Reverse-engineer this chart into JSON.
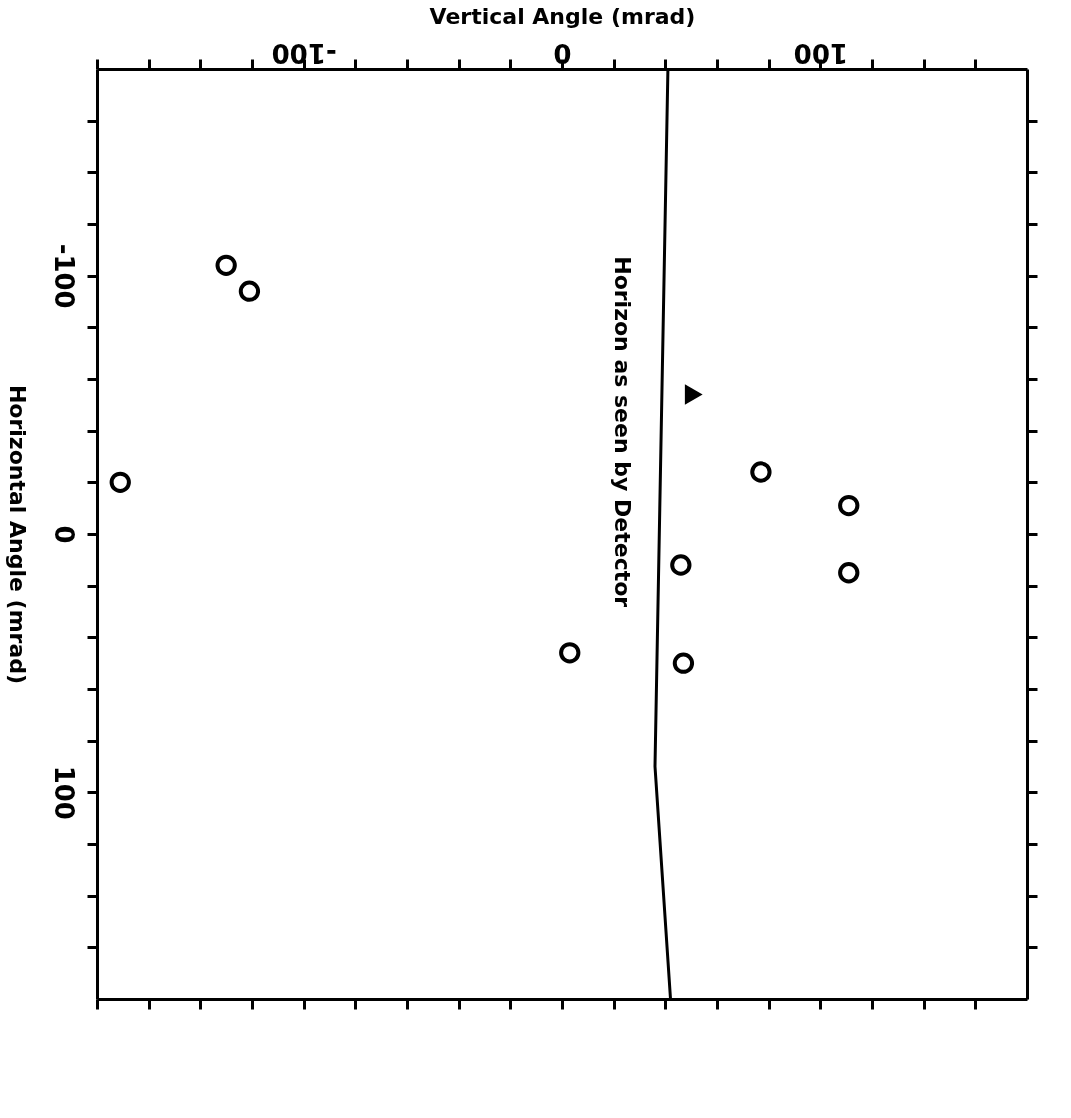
{
  "chart_data": {
    "type": "scatter",
    "xlabel": "Vertical Angle (mrad)",
    "ylabel": "Horizontal Angle (mrad)",
    "xlim": [
      -180,
      180
    ],
    "ylim": [
      180,
      -180
    ],
    "xticks": [
      {
        "value": -180,
        "label": null
      },
      {
        "value": -160,
        "label": null
      },
      {
        "value": -140,
        "label": null
      },
      {
        "value": -120,
        "label": null
      },
      -100,
      {
        "value": -80,
        "label": null
      },
      {
        "value": -60,
        "label": null
      },
      {
        "value": -40,
        "label": null
      },
      {
        "value": -20,
        "label": null
      },
      0,
      {
        "value": 20,
        "label": null
      },
      {
        "value": 40,
        "label": null
      },
      {
        "value": 60,
        "label": null
      },
      {
        "value": 80,
        "label": null
      },
      100,
      {
        "value": 120,
        "label": null
      },
      {
        "value": 140,
        "label": null
      },
      {
        "value": 160,
        "label": null
      }
    ],
    "yticks": [
      {
        "value": -160,
        "label": null
      },
      {
        "value": -140,
        "label": null
      },
      {
        "value": -120,
        "label": null
      },
      -100,
      {
        "value": -80,
        "label": null
      },
      {
        "value": -60,
        "label": null
      },
      {
        "value": -40,
        "label": null
      },
      {
        "value": -20,
        "label": null
      },
      0,
      {
        "value": 20,
        "label": null
      },
      {
        "value": 40,
        "label": null
      },
      {
        "value": 60,
        "label": null
      },
      {
        "value": 80,
        "label": null
      },
      100,
      {
        "value": 120,
        "label": null
      },
      {
        "value": 140,
        "label": null
      },
      {
        "value": 160,
        "label": null
      }
    ],
    "grid": false,
    "series": [
      {
        "marker": "circle",
        "color": "#000000",
        "x": [
          -130
        ],
        "values": [
          -104
        ]
      },
      {
        "marker": "circle",
        "color": "#000000",
        "x": [
          -121,
          -171,
          3,
          46,
          47,
          77,
          111,
          111
        ],
        "values": [
          -94,
          -20,
          46,
          12,
          50,
          -24,
          -11,
          15
        ]
      },
      {
        "marker": "triangle",
        "color": "#000000",
        "x": [
          51
        ],
        "values": [
          -54
        ]
      },
      {
        "type": "line",
        "line_style": "solid",
        "color": "#000000",
        "x": [
          41,
          36,
          42
        ],
        "values": [
          -180,
          90,
          180
        ]
      }
    ],
    "annotations": [
      "Horizon as seen by Detector"
    ]
  }
}
